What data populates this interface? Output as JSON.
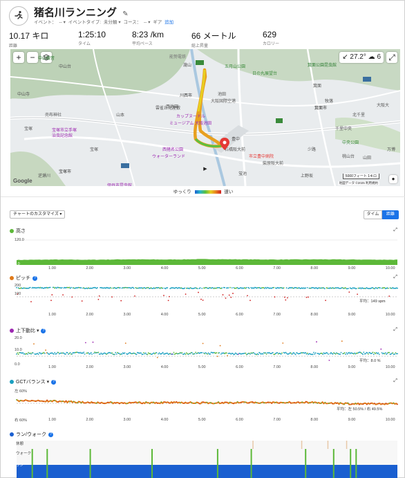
{
  "header": {
    "title": "猪名川ランニング",
    "event_label": "イベント：",
    "event_value": "--",
    "event_type_label": "イベントタイプ:",
    "event_type_value": "未分類",
    "course_label": "コース：",
    "course_value": "--",
    "gear_label": "ギア",
    "gear_add": "追加"
  },
  "stats": [
    {
      "value": "10.17 キロ",
      "label": "距離"
    },
    {
      "value": "1:25:10",
      "label": "タイム"
    },
    {
      "value": "8:23 /km",
      "label": "平均ペース"
    },
    {
      "value": "66 メートル",
      "label": "総上昇量"
    },
    {
      "value": "629",
      "label": "カロリー"
    }
  ],
  "map": {
    "zoom_in": "+",
    "zoom_out": "−",
    "temperature": "27.2°",
    "wind": "6",
    "labels": [
      {
        "t": "能勢電鉄",
        "x": 230,
        "y": 6,
        "c": "#777"
      },
      {
        "t": "瀧山",
        "x": 250,
        "y": 18,
        "c": "#555"
      },
      {
        "t": "五月山公園",
        "x": 310,
        "y": 20,
        "c": "#3a8a3a"
      },
      {
        "t": "日の丸展望台",
        "x": 350,
        "y": 30,
        "c": "#3a8a3a"
      },
      {
        "t": "箕面公園昆虫館",
        "x": 430,
        "y": 18,
        "c": "#2e7d32"
      },
      {
        "t": "大阪国際空港",
        "x": 290,
        "y": 70,
        "c": "#555"
      },
      {
        "t": "池田",
        "x": 300,
        "y": 60,
        "c": "#555"
      },
      {
        "t": "箕面",
        "x": 438,
        "y": 48,
        "c": "#555"
      },
      {
        "t": "牧落",
        "x": 455,
        "y": 70,
        "c": "#555"
      },
      {
        "t": "箕面市",
        "x": 440,
        "y": 80,
        "c": "#333"
      },
      {
        "t": "山本",
        "x": 153,
        "y": 90,
        "c": "#555"
      },
      {
        "t": "雲雀丘花屋敷",
        "x": 210,
        "y": 80,
        "c": "#555"
      },
      {
        "t": "川西市",
        "x": 245,
        "y": 62,
        "c": "#333"
      },
      {
        "t": "西池田",
        "x": 225,
        "y": 78,
        "c": "#555"
      },
      {
        "t": "カップヌードル",
        "x": 240,
        "y": 92,
        "c": "#9c27b0"
      },
      {
        "t": "ミュージアム 大阪池田",
        "x": 230,
        "y": 102,
        "c": "#9c27b0"
      },
      {
        "t": "中山観音",
        "x": 40,
        "y": 8,
        "c": "#2e7d32"
      },
      {
        "t": "中山台",
        "x": 70,
        "y": 20,
        "c": "#555"
      },
      {
        "t": "中山寺",
        "x": 10,
        "y": 60,
        "c": "#555"
      },
      {
        "t": "宝塚",
        "x": 20,
        "y": 110,
        "c": "#555"
      },
      {
        "t": "売布神社",
        "x": 50,
        "y": 90,
        "c": "#555"
      },
      {
        "t": "宝塚市立手塚",
        "x": 60,
        "y": 112,
        "c": "#9c27b0"
      },
      {
        "t": "治虫記念館",
        "x": 60,
        "y": 120,
        "c": "#9c27b0"
      },
      {
        "t": "宝塚市",
        "x": 70,
        "y": 172,
        "c": "#333"
      },
      {
        "t": "宝塚",
        "x": 115,
        "y": 140,
        "c": "#555"
      },
      {
        "t": "逆瀬川",
        "x": 40,
        "y": 178,
        "c": "#555"
      },
      {
        "t": "西猪名公園",
        "x": 220,
        "y": 140,
        "c": "#9c27b0"
      },
      {
        "t": "ウォーターランド",
        "x": 205,
        "y": 150,
        "c": "#9c27b0"
      },
      {
        "t": "伊丹市昆虫館",
        "x": 140,
        "y": 192,
        "c": "#9c27b0"
      },
      {
        "t": "石橋阪大前",
        "x": 310,
        "y": 140,
        "c": "#555"
      },
      {
        "t": "市立豊中病院",
        "x": 345,
        "y": 150,
        "c": "#e53935"
      },
      {
        "t": "豊中",
        "x": 320,
        "y": 125,
        "c": "#555"
      },
      {
        "t": "蛍池",
        "x": 330,
        "y": 175,
        "c": "#555"
      },
      {
        "t": "柴原阪大前",
        "x": 365,
        "y": 160,
        "c": "#555"
      },
      {
        "t": "桃山台",
        "x": 480,
        "y": 150,
        "c": "#555"
      },
      {
        "t": "千里中央",
        "x": 470,
        "y": 110,
        "c": "#555"
      },
      {
        "t": "中央公園",
        "x": 480,
        "y": 130,
        "c": "#3a8a3a"
      },
      {
        "t": "少路",
        "x": 430,
        "y": 140,
        "c": "#555"
      },
      {
        "t": "北千里",
        "x": 495,
        "y": 90,
        "c": "#555"
      },
      {
        "t": "山田",
        "x": 510,
        "y": 152,
        "c": "#555"
      },
      {
        "t": "上野坂",
        "x": 420,
        "y": 178,
        "c": "#555"
      },
      {
        "t": "大阪大",
        "x": 530,
        "y": 76,
        "c": "#555"
      },
      {
        "t": "万博",
        "x": 545,
        "y": 140,
        "c": "#555"
      }
    ],
    "scale": "5000フィート",
    "scale2": "1キロ",
    "attribution": "地図データ ©2025 利用規約",
    "google": "Google",
    "legend_slow": "ゆっくり",
    "legend_fast": "速い"
  },
  "controls": {
    "customize": "チャートのカスタマイズ ▾",
    "time": "タイム",
    "distance": "距離"
  },
  "x_ticks": [
    "1.00",
    "2.00",
    "3.00",
    "4.00",
    "5.00",
    "6.00",
    "7.00",
    "8.00",
    "9.00",
    "10.00"
  ],
  "colors": {
    "elevation": "#5cb838",
    "pitch": "#e07a1a",
    "vertical": "#9c27b0",
    "gct": "#1a9fc0",
    "runwalk": "#1a5fd0",
    "accent": "#1a73e8"
  },
  "charts": {
    "elevation": {
      "title": "高さ",
      "y_top": "120.0",
      "y_bottom": "0.0"
    },
    "pitch": {
      "title": "ピッチ",
      "y_top": "200",
      "y_mid": "100",
      "avg": "平均：149 spm"
    },
    "vertical": {
      "title": "上下動比 ▾",
      "y_top": "20.0",
      "y_mid": "10.0",
      "y_bottom": "0.0",
      "avg": "平均：8.0 %"
    },
    "gct": {
      "title": "GCTバランス ▾",
      "y_top": "左 60%",
      "y_bottom": "右 60%",
      "avg": "平均：左 50.5% / 右 49.5%"
    },
    "runwalk": {
      "title": "ラン/ウォーク",
      "levels": [
        "休憩",
        "ウォーク",
        "ラン"
      ]
    }
  },
  "chart_data": [
    {
      "type": "area",
      "title": "高さ",
      "x": [
        0,
        1,
        2,
        3,
        4,
        5,
        6,
        7,
        8,
        9,
        10.17
      ],
      "values": [
        24,
        26,
        25,
        27,
        26,
        28,
        27,
        26,
        27,
        26,
        25
      ],
      "ylim": [
        0,
        120
      ]
    },
    {
      "type": "scatter",
      "title": "ピッチ",
      "x": [
        0,
        1,
        2,
        3,
        4,
        5,
        6,
        7,
        8,
        9,
        10.17
      ],
      "values": [
        150,
        152,
        150,
        151,
        149,
        150,
        150,
        151,
        149,
        148,
        150
      ],
      "avg": 149,
      "ylim": [
        0,
        200
      ]
    },
    {
      "type": "scatter",
      "title": "上下動比",
      "x": [
        0,
        1,
        2,
        3,
        4,
        5,
        6,
        7,
        8,
        9,
        10.17
      ],
      "values": [
        8,
        8,
        8.2,
        7.9,
        8,
        8.1,
        7.9,
        8,
        8,
        8.2,
        8
      ],
      "avg": 8.0,
      "ylim": [
        0,
        20
      ]
    },
    {
      "type": "line",
      "title": "GCTバランス",
      "x": [
        0,
        1,
        2,
        3,
        4,
        5,
        6,
        7,
        8,
        9,
        10.17
      ],
      "values": [
        52,
        51.5,
        50.5,
        50.3,
        50.5,
        50.3,
        50.5,
        50.4,
        50.6,
        49.5,
        49.8
      ],
      "avg": 50.5,
      "ylim": [
        40,
        60
      ]
    }
  ]
}
